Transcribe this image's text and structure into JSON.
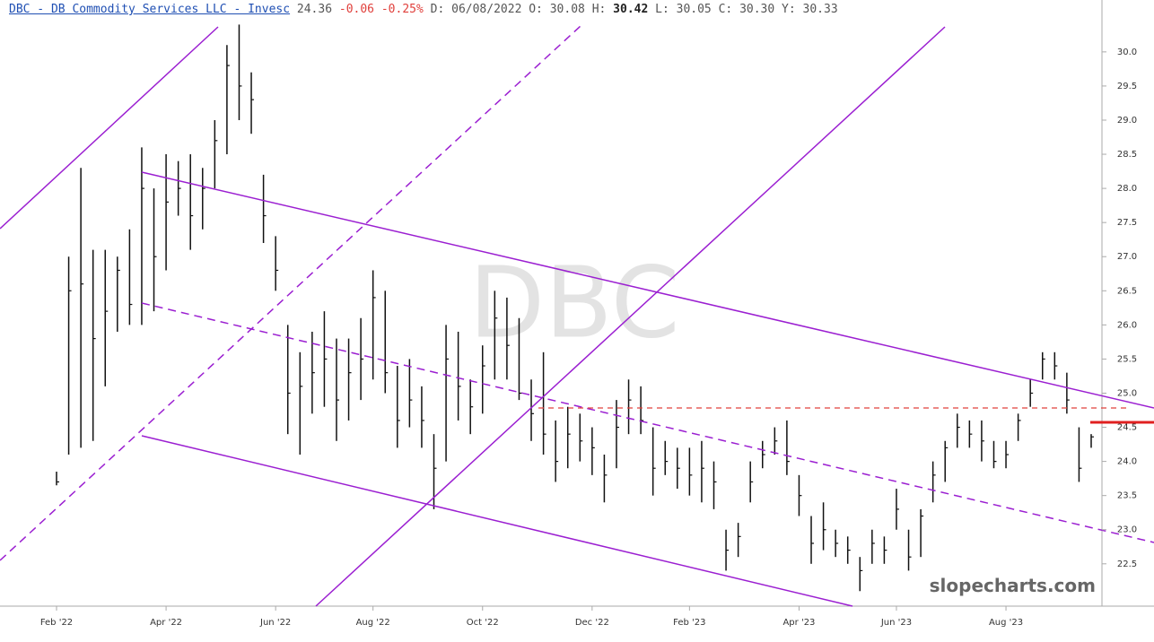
{
  "chart_data": {
    "type": "ohlc",
    "header": {
      "title": "DBC - DB Commodity Services LLC - Invesc",
      "last": "24.36",
      "change": "-0.06",
      "change_pct": "-0.25%",
      "fields": [
        {
          "key": "D:",
          "value": "06/08/2022"
        },
        {
          "key": "O:",
          "value": "30.08"
        },
        {
          "key": "H:",
          "value": "30.42"
        },
        {
          "key": "L:",
          "value": "30.05"
        },
        {
          "key": "C:",
          "value": "30.30"
        },
        {
          "key": "Y:",
          "value": "30.33"
        }
      ]
    },
    "watermark": "DBC",
    "credit": "slopecharts.com",
    "color": "#111111",
    "categories": [
      "Feb '22",
      null,
      null,
      null,
      null,
      null,
      null,
      null,
      null,
      "Apr '22",
      null,
      null,
      null,
      null,
      null,
      null,
      null,
      null,
      "Jun '22",
      null,
      null,
      null,
      null,
      null,
      null,
      null,
      "Aug '22",
      null,
      null,
      null,
      null,
      null,
      null,
      null,
      null,
      "Oct '22",
      null,
      null,
      null,
      null,
      null,
      null,
      null,
      null,
      "Dec '22",
      null,
      null,
      null,
      null,
      null,
      null,
      null,
      "Feb '23",
      null,
      null,
      null,
      null,
      null,
      null,
      null,
      null,
      "Apr '23",
      null,
      null,
      null,
      null,
      null,
      null,
      null,
      "Jun '23",
      null,
      null,
      null,
      null,
      null,
      null,
      null,
      null,
      "Aug '23",
      null,
      null,
      null,
      null,
      null,
      null,
      null
    ],
    "high": [
      23.85,
      27.0,
      28.3,
      27.1,
      27.1,
      27.0,
      27.4,
      28.6,
      28.0,
      28.5,
      28.4,
      28.5,
      28.3,
      29.0,
      30.1,
      30.4,
      29.7,
      28.2,
      27.3,
      26.0,
      25.6,
      25.9,
      26.2,
      25.8,
      25.8,
      26.1,
      26.8,
      26.5,
      25.4,
      25.5,
      25.1,
      24.4,
      26.0,
      25.9,
      25.2,
      25.7,
      26.5,
      26.4,
      26.1,
      25.2,
      25.6,
      24.6,
      24.8,
      24.7,
      24.5,
      24.1,
      24.9,
      25.2,
      25.1,
      24.5,
      24.3,
      24.2,
      24.2,
      24.3,
      24.0,
      23.0,
      23.1,
      24.0,
      24.3,
      24.5,
      24.6,
      23.8,
      23.2,
      23.4,
      23.0,
      22.9,
      22.6,
      23.0,
      22.9,
      23.6,
      23.0,
      23.3,
      24.0,
      24.3,
      24.7,
      24.6,
      24.6,
      24.3,
      24.3,
      24.7,
      25.2,
      25.6,
      25.6,
      25.3,
      24.5,
      24.4
    ],
    "low": [
      23.65,
      24.1,
      24.2,
      24.3,
      25.1,
      25.9,
      26.0,
      26.0,
      26.2,
      26.8,
      27.6,
      27.1,
      27.4,
      28.0,
      28.5,
      29.0,
      28.8,
      27.2,
      26.5,
      24.4,
      24.1,
      24.7,
      24.8,
      24.3,
      24.6,
      24.9,
      25.2,
      25.0,
      24.2,
      24.5,
      24.2,
      23.3,
      24.0,
      24.6,
      24.4,
      24.7,
      25.2,
      25.2,
      24.9,
      24.3,
      24.1,
      23.7,
      23.9,
      24.0,
      23.8,
      23.4,
      23.9,
      24.4,
      24.4,
      23.5,
      23.8,
      23.6,
      23.5,
      23.4,
      23.3,
      22.4,
      22.6,
      23.4,
      23.9,
      24.1,
      23.8,
      23.2,
      22.5,
      22.7,
      22.6,
      22.5,
      22.1,
      22.5,
      22.5,
      23.0,
      22.4,
      22.6,
      23.4,
      23.7,
      24.2,
      24.2,
      24.0,
      23.9,
      23.9,
      24.3,
      24.8,
      25.2,
      25.2,
      24.7,
      23.7,
      24.2
    ],
    "close": [
      23.7,
      26.5,
      26.6,
      25.8,
      26.2,
      26.8,
      26.3,
      28.0,
      27.0,
      27.8,
      28.0,
      27.6,
      28.0,
      28.7,
      29.8,
      29.5,
      29.3,
      27.6,
      26.8,
      25.0,
      25.1,
      25.3,
      25.5,
      24.9,
      25.3,
      25.5,
      26.4,
      25.3,
      24.6,
      24.9,
      24.6,
      23.9,
      25.5,
      25.1,
      24.8,
      25.4,
      26.1,
      25.7,
      25.0,
      24.7,
      24.4,
      24.0,
      24.4,
      24.3,
      24.2,
      23.8,
      24.5,
      24.9,
      24.6,
      23.9,
      24.0,
      23.9,
      23.8,
      23.9,
      23.7,
      22.7,
      22.9,
      23.7,
      24.1,
      24.3,
      24.0,
      23.5,
      22.8,
      23.0,
      22.8,
      22.7,
      22.4,
      22.8,
      22.7,
      23.3,
      22.6,
      23.2,
      23.8,
      24.2,
      24.5,
      24.4,
      24.3,
      24.0,
      24.1,
      24.6,
      25.0,
      25.5,
      25.4,
      24.9,
      23.9,
      24.36
    ],
    "ylim": [
      21.88,
      30.76
    ],
    "yticks": [
      22.5,
      {
        "value": 23,
        "label": "23.0"
      },
      23.5,
      {
        "value": 24,
        "label": "24.0"
      },
      24.5,
      {
        "value": 25,
        "label": "25.0"
      },
      25.5,
      {
        "value": 26,
        "label": "26.0"
      },
      26.5,
      {
        "value": 27,
        "label": "27.0"
      },
      27.5,
      {
        "value": 28,
        "label": "28.0"
      },
      28.5,
      {
        "value": 29,
        "label": "29.0"
      },
      29.5,
      {
        "value": 30,
        "label": "30.0"
      }
    ]
  }
}
